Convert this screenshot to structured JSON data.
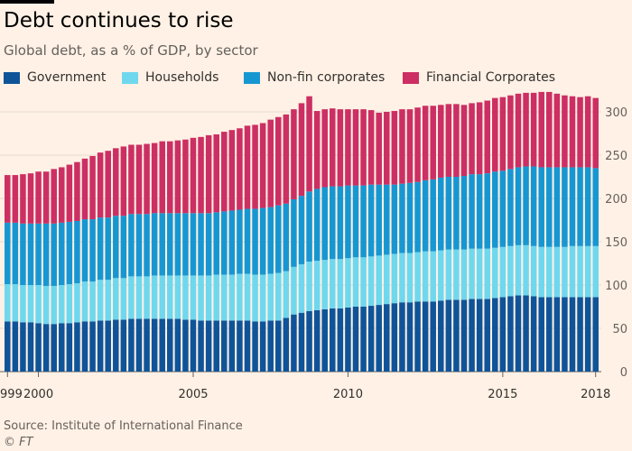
{
  "chart_data": {
    "type": "bar",
    "stacked": true,
    "title": "Debt continues to rise",
    "subtitle": "Global debt, as a % of GDP, by sector",
    "source": "Source: Institute of International Finance",
    "credit": "© FT",
    "xlabel": "",
    "ylabel": "",
    "ylim": [
      0,
      325
    ],
    "yticks": [
      0,
      50,
      100,
      150,
      200,
      250,
      300
    ],
    "y_axis_side": "right",
    "x_tick_labels": [
      {
        "label": "1999",
        "index": 0
      },
      {
        "label": "2000",
        "index": 4
      },
      {
        "label": "2005",
        "index": 24
      },
      {
        "label": "2010",
        "index": 44
      },
      {
        "label": "2015",
        "index": 64
      },
      {
        "label": "2018",
        "index": 76
      }
    ],
    "categories": [
      "1999Q1",
      "1999Q2",
      "1999Q3",
      "1999Q4",
      "2000Q1",
      "2000Q2",
      "2000Q3",
      "2000Q4",
      "2001Q1",
      "2001Q2",
      "2001Q3",
      "2001Q4",
      "2002Q1",
      "2002Q2",
      "2002Q3",
      "2002Q4",
      "2003Q1",
      "2003Q2",
      "2003Q3",
      "2003Q4",
      "2004Q1",
      "2004Q2",
      "2004Q3",
      "2004Q4",
      "2005Q1",
      "2005Q2",
      "2005Q3",
      "2005Q4",
      "2006Q1",
      "2006Q2",
      "2006Q3",
      "2006Q4",
      "2007Q1",
      "2007Q2",
      "2007Q3",
      "2007Q4",
      "2008Q1",
      "2008Q2",
      "2008Q3",
      "2008Q4",
      "2009Q1",
      "2009Q2",
      "2009Q3",
      "2009Q4",
      "2010Q1",
      "2010Q2",
      "2010Q3",
      "2010Q4",
      "2011Q1",
      "2011Q2",
      "2011Q3",
      "2011Q4",
      "2012Q1",
      "2012Q2",
      "2012Q3",
      "2012Q4",
      "2013Q1",
      "2013Q2",
      "2013Q3",
      "2013Q4",
      "2014Q1",
      "2014Q2",
      "2014Q3",
      "2014Q4",
      "2015Q1",
      "2015Q2",
      "2015Q3",
      "2015Q4",
      "2016Q1",
      "2016Q2",
      "2016Q3",
      "2016Q4",
      "2017Q1",
      "2017Q2",
      "2017Q3",
      "2017Q4",
      "2018Q1"
    ],
    "series": [
      {
        "name": "Government",
        "color": "#0f5499",
        "values": [
          58,
          58,
          57,
          57,
          56,
          55,
          55,
          56,
          56,
          57,
          58,
          58,
          59,
          59,
          60,
          60,
          61,
          61,
          61,
          61,
          61,
          61,
          61,
          60,
          60,
          59,
          59,
          59,
          59,
          59,
          59,
          59,
          58,
          58,
          59,
          59,
          62,
          66,
          68,
          70,
          71,
          72,
          73,
          73,
          74,
          75,
          75,
          76,
          77,
          78,
          79,
          80,
          80,
          81,
          81,
          81,
          82,
          83,
          83,
          83,
          84,
          84,
          84,
          85,
          86,
          87,
          88,
          88,
          87,
          86,
          86,
          86,
          86,
          86,
          86,
          86,
          86
        ]
      },
      {
        "name": "Households",
        "color": "#6fd8ee",
        "values": [
          43,
          43,
          43,
          43,
          44,
          44,
          44,
          44,
          45,
          45,
          46,
          46,
          47,
          47,
          48,
          48,
          49,
          49,
          49,
          50,
          50,
          50,
          50,
          51,
          51,
          52,
          52,
          53,
          53,
          53,
          54,
          54,
          54,
          54,
          54,
          55,
          54,
          55,
          56,
          57,
          57,
          57,
          57,
          57,
          57,
          57,
          57,
          57,
          57,
          57,
          57,
          57,
          57,
          57,
          58,
          58,
          58,
          58,
          58,
          58,
          58,
          58,
          58,
          58,
          58,
          58,
          58,
          58,
          58,
          58,
          58,
          58,
          58,
          59,
          59,
          59,
          59
        ]
      },
      {
        "name": "Non-fin corporates",
        "color": "#1797d2",
        "values": [
          71,
          71,
          71,
          71,
          71,
          72,
          72,
          72,
          72,
          72,
          72,
          72,
          72,
          72,
          72,
          72,
          72,
          72,
          72,
          72,
          72,
          72,
          72,
          72,
          72,
          72,
          72,
          72,
          73,
          74,
          74,
          75,
          76,
          77,
          77,
          78,
          78,
          78,
          79,
          81,
          83,
          84,
          84,
          84,
          84,
          83,
          83,
          83,
          82,
          81,
          80,
          80,
          81,
          81,
          82,
          83,
          84,
          84,
          84,
          85,
          86,
          86,
          87,
          88,
          88,
          89,
          90,
          91,
          92,
          92,
          92,
          92,
          92,
          91,
          91,
          91,
          90
        ]
      },
      {
        "name": "Financial Corporates",
        "color": "#cc2f63",
        "values": [
          55,
          55,
          57,
          58,
          60,
          60,
          63,
          64,
          66,
          68,
          70,
          73,
          75,
          77,
          78,
          80,
          80,
          80,
          81,
          81,
          83,
          83,
          84,
          85,
          87,
          88,
          90,
          90,
          92,
          93,
          94,
          96,
          97,
          98,
          101,
          102,
          103,
          104,
          107,
          110,
          90,
          90,
          90,
          89,
          88,
          88,
          88,
          86,
          83,
          84,
          85,
          86,
          85,
          86,
          86,
          85,
          84,
          84,
          84,
          82,
          82,
          83,
          84,
          85,
          85,
          85,
          85,
          85,
          85,
          87,
          87,
          85,
          83,
          82,
          81,
          82,
          81
        ]
      }
    ]
  }
}
